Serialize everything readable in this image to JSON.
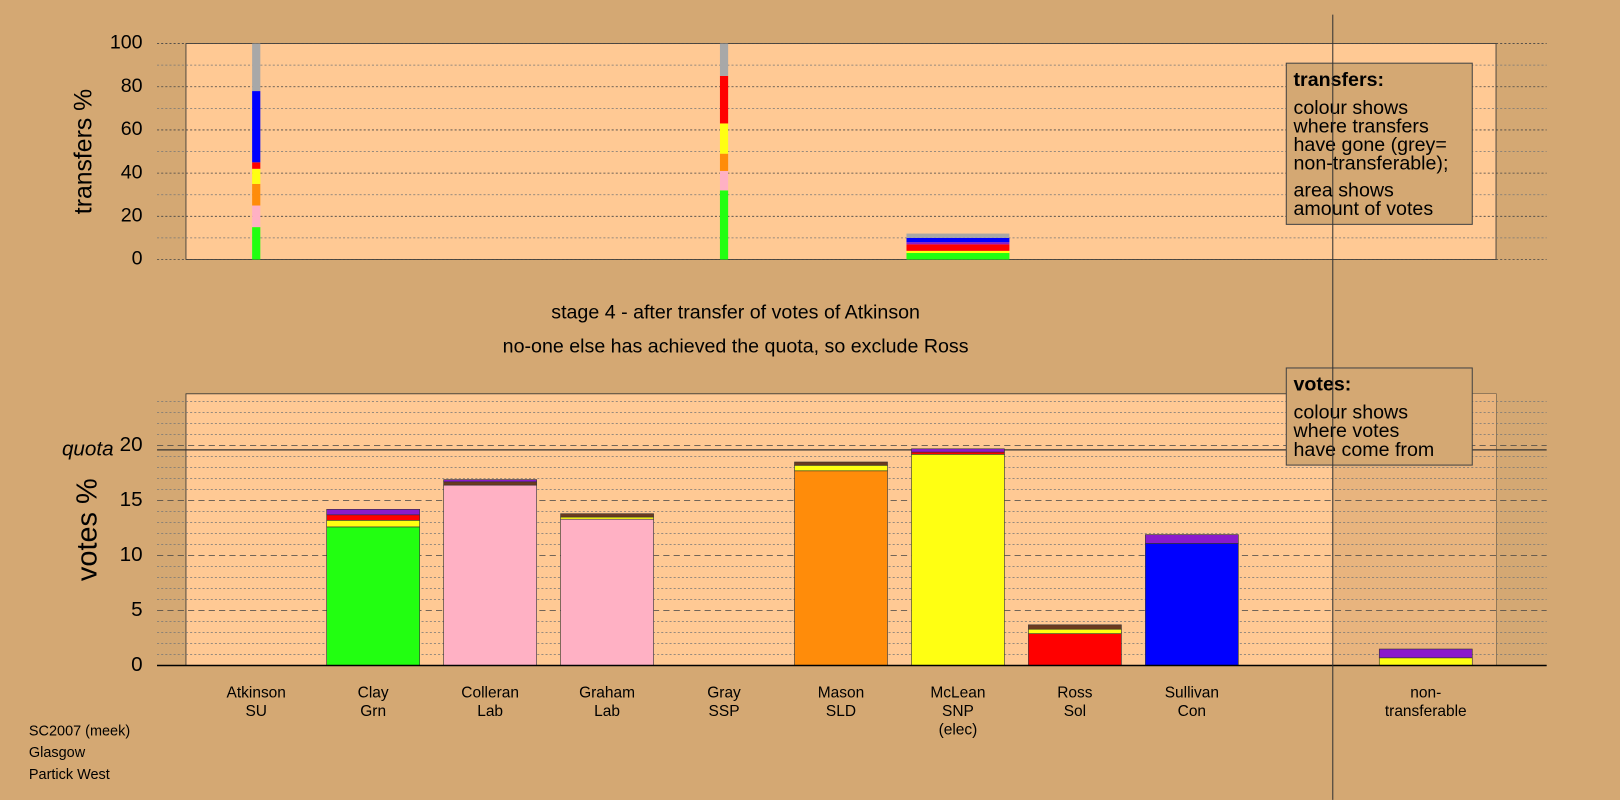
{
  "chart_data": [
    {
      "type": "bar",
      "stacked": true,
      "ylabel": "transfers %",
      "ylim": [
        0,
        100
      ],
      "yticks": [
        0,
        20,
        40,
        60,
        80,
        100
      ],
      "minor_yticks": [
        10,
        30,
        50,
        70,
        90
      ],
      "grid": "dotted",
      "bar_widths": [
        0.07,
        null,
        null,
        null,
        0.07,
        null,
        0.88,
        null,
        null,
        null
      ],
      "stacks": [
        [
          {
            "color": "#22ff11",
            "value": 15
          },
          {
            "color": "#ffb1c4",
            "value": 10
          },
          {
            "color": "#ff8c0a",
            "value": 10
          },
          {
            "color": "#ffff12",
            "value": 7
          },
          {
            "color": "#ff0000",
            "value": 3
          },
          {
            "color": "#0000ff",
            "value": 33
          },
          {
            "color": "#a8a8a8",
            "value": 22
          }
        ],
        [],
        [],
        [],
        [
          {
            "color": "#22ff11",
            "value": 32
          },
          {
            "color": "#ffb1c4",
            "value": 9
          },
          {
            "color": "#ff8c0a",
            "value": 8
          },
          {
            "color": "#ffff12",
            "value": 14
          },
          {
            "color": "#ff0000",
            "value": 22
          },
          {
            "color": "#a8a8a8",
            "value": 15
          }
        ],
        [],
        [
          {
            "color": "#22ff11",
            "value": 3
          },
          {
            "color": "#ffff12",
            "value": 1
          },
          {
            "color": "#ff0000",
            "value": 3
          },
          {
            "color": "#8a1acc",
            "value": 1
          },
          {
            "color": "#0000ff",
            "value": 2
          },
          {
            "color": "#a8a8a8",
            "value": 2
          }
        ],
        [],
        [],
        []
      ],
      "note": {
        "title": "transfers:",
        "paragraphs": [
          [
            "colour shows",
            "where transfers",
            "have gone (grey=",
            "non-transferable);"
          ],
          [
            "area shows",
            "amount of votes"
          ]
        ]
      }
    },
    {
      "type": "bar",
      "stacked": true,
      "ylabel": "votes %",
      "categories": [
        [
          "Atkinson",
          "SU"
        ],
        [
          "Clay",
          "Grn"
        ],
        [
          "Colleran",
          "Lab"
        ],
        [
          "Graham",
          "Lab"
        ],
        [
          "Gray",
          "SSP"
        ],
        [
          "Mason",
          "SLD"
        ],
        [
          "McLean",
          "SNP",
          "(elec)"
        ],
        [
          "Ross",
          "Sol"
        ],
        [
          "Sullivan",
          "Con"
        ],
        [
          "non-",
          "transferable"
        ]
      ],
      "ylim": [
        0,
        24.7
      ],
      "yticks": [
        0,
        5,
        10,
        15,
        20
      ],
      "minor_yticks": [
        1,
        2,
        3,
        4,
        6,
        7,
        8,
        9,
        11,
        12,
        13,
        14,
        16,
        17,
        18,
        19,
        21,
        22,
        23,
        24
      ],
      "grid": "dashed",
      "quota": {
        "label": "quota",
        "value": 19.6
      },
      "stacks": [
        [],
        [
          {
            "color": "#22ff11",
            "value": 12.6
          },
          {
            "color": "#ffff12",
            "value": 0.6
          },
          {
            "color": "#ff0000",
            "value": 0.5
          },
          {
            "color": "#8a1acc",
            "value": 0.5
          }
        ],
        [
          {
            "color": "#ffb1c4",
            "value": 16.4
          },
          {
            "color": "#6b3a1f",
            "value": 0.3
          },
          {
            "color": "#8a1acc",
            "value": 0.2
          }
        ],
        [
          {
            "color": "#ffb1c4",
            "value": 13.3
          },
          {
            "color": "#ffff12",
            "value": 0.2
          },
          {
            "color": "#6b3a1f",
            "value": 0.3
          }
        ],
        [],
        [
          {
            "color": "#ff8c0a",
            "value": 17.7
          },
          {
            "color": "#ffff12",
            "value": 0.5
          },
          {
            "color": "#6b3a1f",
            "value": 0.3
          }
        ],
        [
          {
            "color": "#ffff12",
            "value": 19.2
          },
          {
            "color": "#ff0000",
            "value": 0.2
          },
          {
            "color": "#8a1acc",
            "value": 0.3
          }
        ],
        [
          {
            "color": "#ff0000",
            "value": 2.9
          },
          {
            "color": "#ffff12",
            "value": 0.4
          },
          {
            "color": "#6b3a1f",
            "value": 0.4
          }
        ],
        [
          {
            "color": "#0000ff",
            "value": 11.1
          },
          {
            "color": "#8a1acc",
            "value": 0.8
          }
        ],
        [
          {
            "color": "#ffff12",
            "value": 0.7
          },
          {
            "color": "#8a1acc",
            "value": 0.8
          }
        ]
      ],
      "note": {
        "title": "votes:",
        "paragraphs": [
          [
            "colour shows",
            "where votes",
            "have come from"
          ]
        ]
      }
    }
  ],
  "stage_title": "stage 4 - after transfer of votes of Atkinson",
  "stage_note": "no-one else has achieved the quota, so exclude Ross",
  "footer": [
    "SC2007 (meek)",
    "Glasgow",
    "Partick West"
  ]
}
